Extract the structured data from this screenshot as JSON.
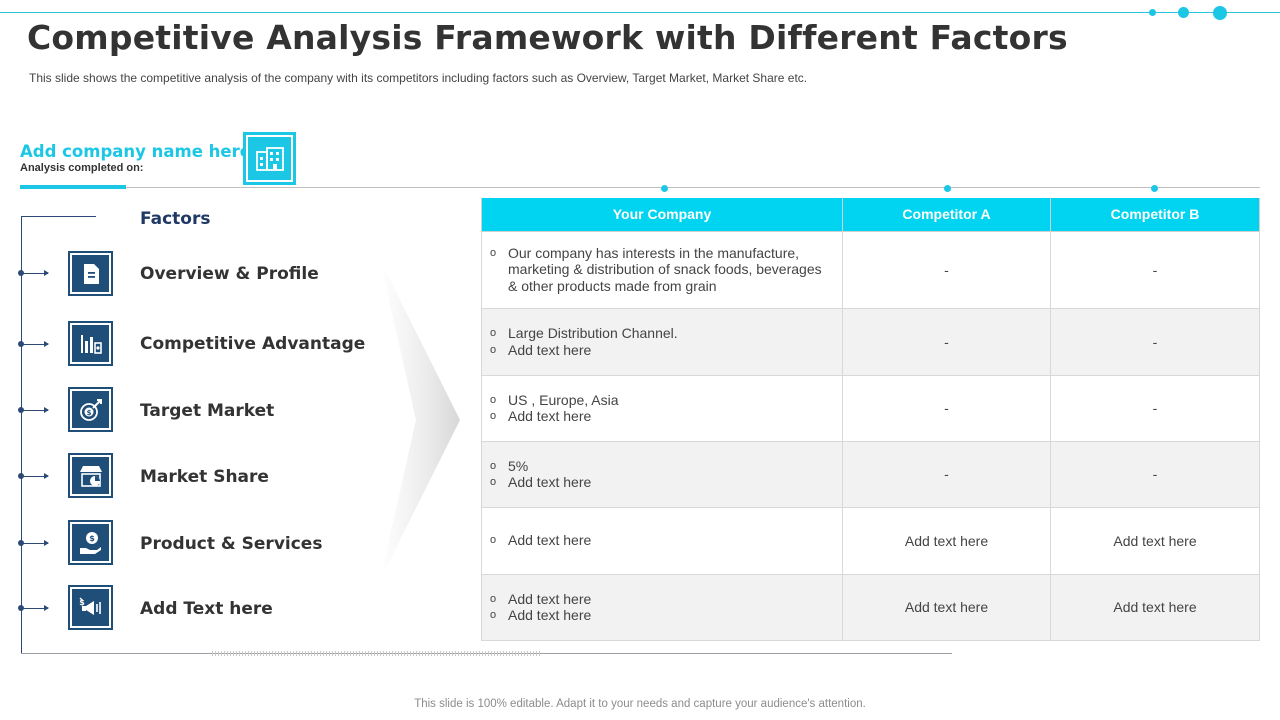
{
  "title": "Competitive Analysis Framework with Different Factors",
  "subtitle": "This slide shows the competitive analysis of the company with its competitors including factors such as Overview,  Target Market, Market Share etc.",
  "company": {
    "name": "Add company name here",
    "analysis_label": "Analysis completed on:",
    "icon": "building-icon"
  },
  "factors": {
    "heading": "Factors",
    "items": [
      {
        "label": "Overview & Profile",
        "icon": "document-icon"
      },
      {
        "label": "Competitive Advantage",
        "icon": "bar-chart-icon"
      },
      {
        "label": "Target Market",
        "icon": "target-dollar-icon"
      },
      {
        "label": "Market Share",
        "icon": "store-pie-icon"
      },
      {
        "label": "Product & Services",
        "icon": "hand-money-icon"
      },
      {
        "label": "Add Text here",
        "icon": "megaphone-icon"
      }
    ]
  },
  "table": {
    "headers": [
      "Your Company",
      "Competitor A",
      "Competitor B"
    ],
    "rows": [
      {
        "company": [
          "Our company has interests in the manufacture, marketing & distribution of snack foods, beverages & other products made from grain"
        ],
        "a": "-",
        "b": "-"
      },
      {
        "company": [
          "Large Distribution Channel.",
          "Add text here"
        ],
        "a": "-",
        "b": "-"
      },
      {
        "company": [
          "US , Europe, Asia",
          "Add text here"
        ],
        "a": "-",
        "b": "-"
      },
      {
        "company": [
          "5%",
          "Add text here"
        ],
        "a": "-",
        "b": "-"
      },
      {
        "company": [
          "Add text here"
        ],
        "a": "Add text here",
        "b": "Add text here"
      },
      {
        "company": [
          "Add text here",
          "Add text here"
        ],
        "a": "Add text here",
        "b": "Add text here"
      }
    ]
  },
  "footer": "This slide is 100% editable. Adapt it to your needs and capture your audience's attention.",
  "colors": {
    "accent": "#00d4f0",
    "navy": "#1f4e79",
    "heading": "#1f3864"
  }
}
